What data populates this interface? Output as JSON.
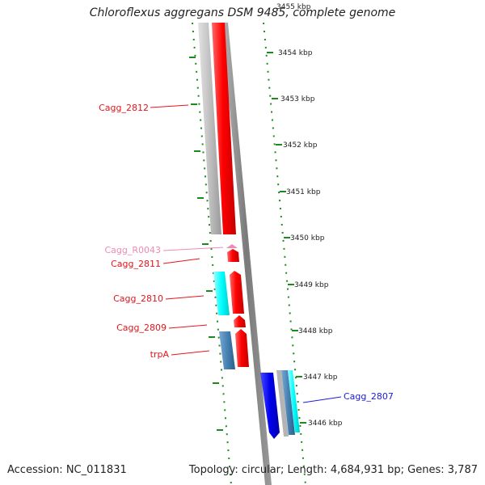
{
  "title": "Chloroflexus aggregans DSM 9485, complete genome",
  "accession": "Accession: NC_011831",
  "summary": "Topology: circular; Length: 4,684,931 bp; Genes: 3,787",
  "kbp_ticks": [
    "3455 kbp",
    "3454 kbp",
    "3453 kbp",
    "3452 kbp",
    "3451 kbp",
    "3450 kbp",
    "3449 kbp",
    "3448 kbp",
    "3447 kbp",
    "3446 kbp"
  ],
  "gene_labels": [
    {
      "name": "Cagg_2812",
      "color": "#e8141b"
    },
    {
      "name": "Cagg_R0043",
      "color": "#f08ab4"
    },
    {
      "name": "Cagg_2811",
      "color": "#e8141b"
    },
    {
      "name": "Cagg_2810",
      "color": "#e8141b"
    },
    {
      "name": "Cagg_2809",
      "color": "#e8141b"
    },
    {
      "name": "trpA",
      "color": "#e8141b"
    },
    {
      "name": "Cagg_2807",
      "color": "#1a1adf"
    }
  ],
  "colors": {
    "tick_green": "#1d8a1d",
    "gene_red": "#ff1a1a",
    "gene_cyan": "#00ffff",
    "gene_steelblue": "#4682b4",
    "gene_blue": "#0000ee",
    "trna_pink": "#f08ab4",
    "backbone_grey": "#808080"
  }
}
